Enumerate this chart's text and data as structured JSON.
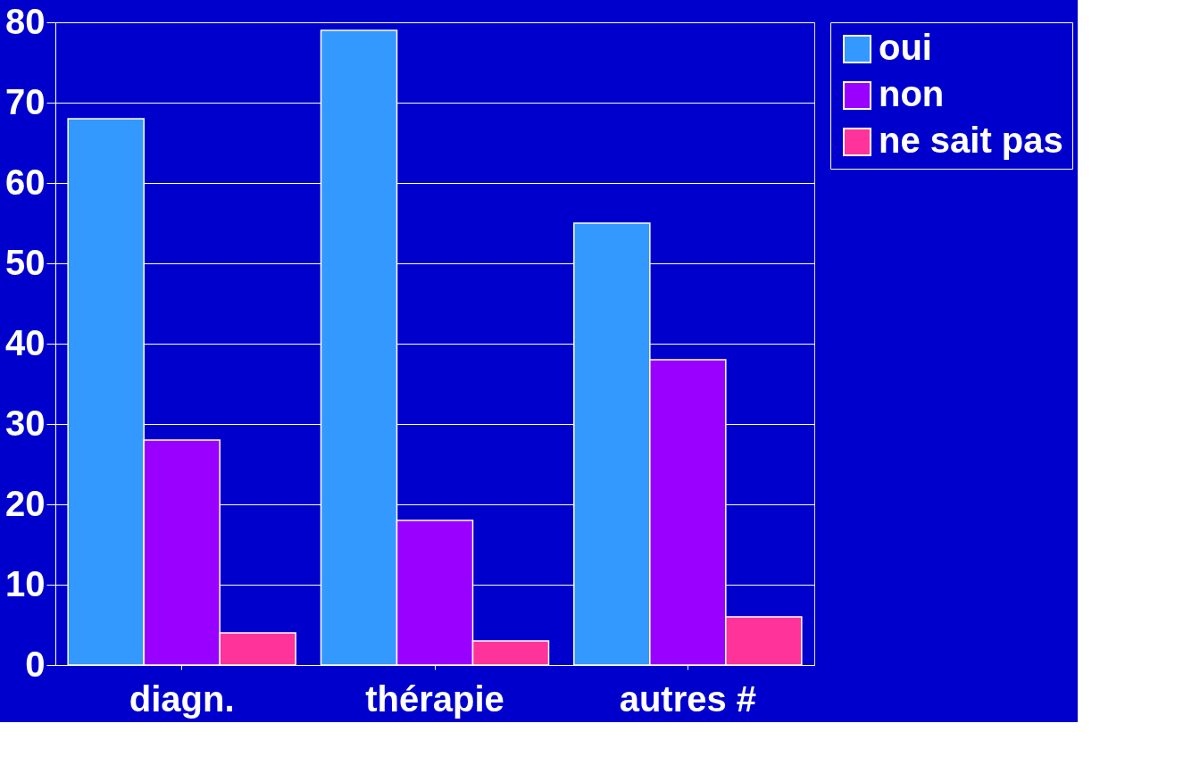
{
  "chart_data": {
    "type": "bar",
    "categories": [
      "diagn.",
      "thérapie",
      "autres #"
    ],
    "series": [
      {
        "name": "oui",
        "color": "#3399ff",
        "values": [
          68,
          79,
          55
        ]
      },
      {
        "name": "non",
        "color": "#9900ff",
        "values": [
          28,
          18,
          38
        ]
      },
      {
        "name": "ne sait pas",
        "color": "#ff3399",
        "values": [
          4,
          3,
          6
        ]
      }
    ],
    "ylim": [
      0,
      80
    ],
    "yticks": [
      0,
      10,
      20,
      30,
      40,
      50,
      60,
      70,
      80
    ],
    "grid": "y",
    "legend": "right"
  }
}
